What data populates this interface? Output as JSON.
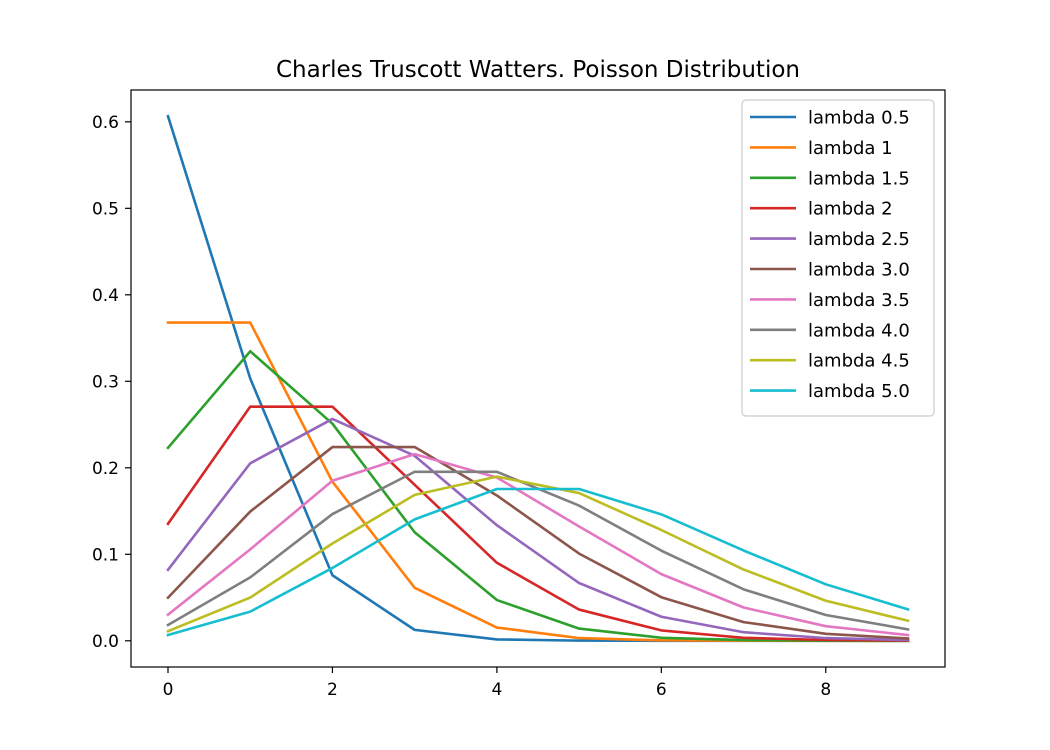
{
  "chart_data": {
    "type": "line",
    "title": "Charles Truscott Watters. Poisson Distribution",
    "xlabel": "",
    "ylabel": "",
    "xlim": [
      -0.45,
      9.45
    ],
    "ylim": [
      -0.0303,
      0.6368
    ],
    "x_ticks": [
      0,
      2,
      4,
      6,
      8
    ],
    "y_ticks": [
      0.0,
      0.1,
      0.2,
      0.3,
      0.4,
      0.5,
      0.6
    ],
    "grid": false,
    "legend_position": "top-right",
    "x": [
      0,
      1,
      2,
      3,
      4,
      5,
      6,
      7,
      8,
      9
    ],
    "series": [
      {
        "name": "lambda 0.5",
        "color": "#1f77b4",
        "values": [
          0.6065,
          0.3033,
          0.0758,
          0.0126,
          0.0016,
          0.0002,
          0.0,
          0.0,
          0.0,
          0.0
        ]
      },
      {
        "name": "lambda 1",
        "color": "#ff7f0e",
        "values": [
          0.3679,
          0.3679,
          0.1839,
          0.0613,
          0.0153,
          0.0031,
          0.0005,
          0.0001,
          0.0,
          0.0
        ]
      },
      {
        "name": "lambda 1.5",
        "color": "#2ca02c",
        "values": [
          0.2231,
          0.3347,
          0.251,
          0.1255,
          0.0471,
          0.0141,
          0.0035,
          0.0008,
          0.0001,
          0.0
        ]
      },
      {
        "name": "lambda 2",
        "color": "#d62728",
        "values": [
          0.1353,
          0.2707,
          0.2707,
          0.1804,
          0.0902,
          0.0361,
          0.012,
          0.0034,
          0.0009,
          0.0002
        ]
      },
      {
        "name": "lambda 2.5",
        "color": "#9467bd",
        "values": [
          0.0821,
          0.2052,
          0.2565,
          0.2138,
          0.1336,
          0.0668,
          0.0278,
          0.0099,
          0.0031,
          0.0009
        ]
      },
      {
        "name": "lambda 3.0",
        "color": "#8c564b",
        "values": [
          0.0498,
          0.1494,
          0.224,
          0.224,
          0.168,
          0.1008,
          0.0504,
          0.0216,
          0.0081,
          0.0027
        ]
      },
      {
        "name": "lambda 3.5",
        "color": "#e377c2",
        "values": [
          0.0302,
          0.1057,
          0.185,
          0.2158,
          0.1888,
          0.1322,
          0.0771,
          0.0385,
          0.0169,
          0.0066
        ]
      },
      {
        "name": "lambda 4.0",
        "color": "#7f7f7f",
        "values": [
          0.0183,
          0.0733,
          0.1465,
          0.1954,
          0.1954,
          0.1563,
          0.1042,
          0.0595,
          0.0298,
          0.0132
        ]
      },
      {
        "name": "lambda 4.5",
        "color": "#bcbd22",
        "values": [
          0.0111,
          0.05,
          0.1125,
          0.1687,
          0.1898,
          0.1708,
          0.1281,
          0.0824,
          0.0463,
          0.0232
        ]
      },
      {
        "name": "lambda 5.0",
        "color": "#17becf",
        "values": [
          0.0067,
          0.0337,
          0.0842,
          0.1404,
          0.1755,
          0.1755,
          0.1462,
          0.1044,
          0.0653,
          0.0363
        ]
      }
    ]
  }
}
